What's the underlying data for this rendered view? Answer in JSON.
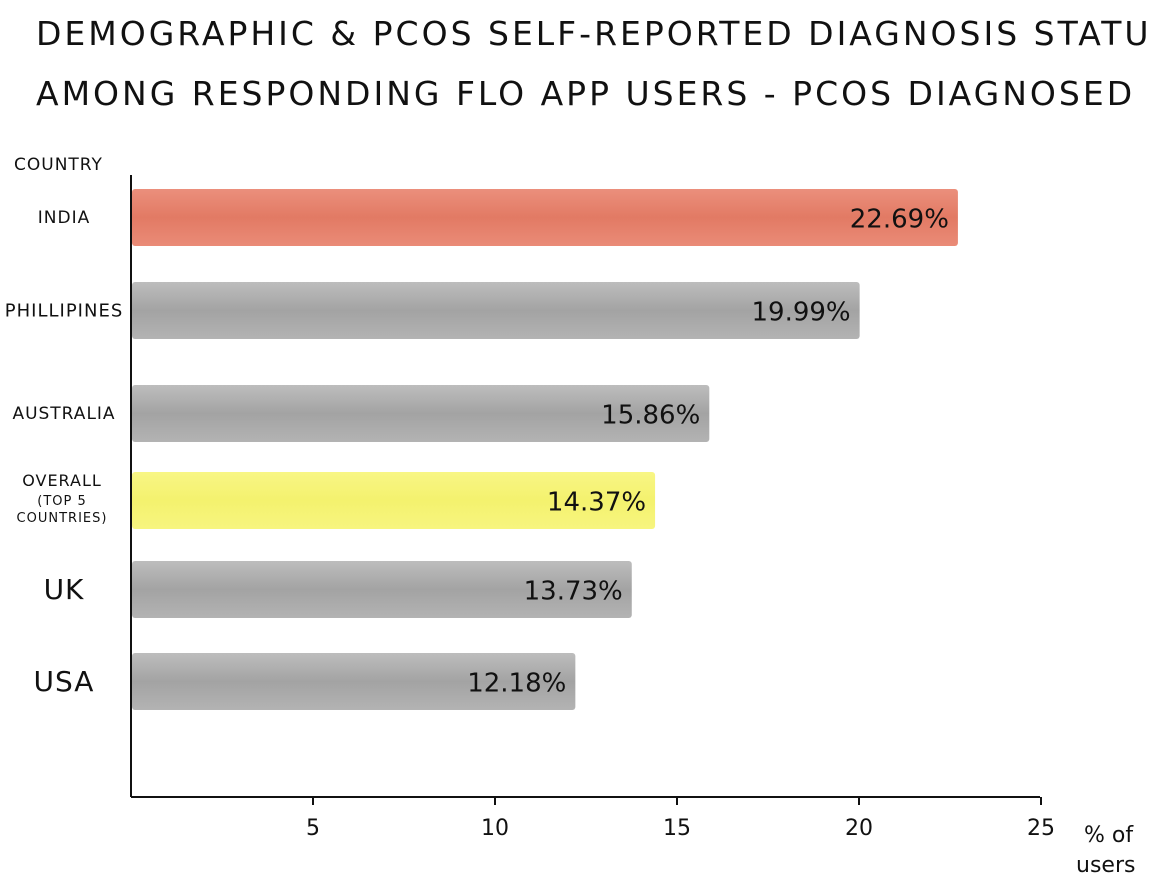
{
  "chart_data": {
    "type": "bar",
    "orientation": "horizontal",
    "title_lines": [
      "DEMOGRAPHIC & PCOS SELF-REPORTED DIAGNOSIS STATUS",
      "AMONG RESPONDING FLO APP USERS - PCOS DIAGNOSED"
    ],
    "ylabel": "COUNTRY",
    "xlabel": "% of users",
    "categories": [
      [
        "INDIA"
      ],
      [
        "PHILLIPINES"
      ],
      [
        "AUSTRALIA"
      ],
      [
        "OVERALL",
        "(TOP 5",
        "COUNTRIES)"
      ],
      [
        "UK"
      ],
      [
        "USA"
      ]
    ],
    "values": [
      22.69,
      19.99,
      15.86,
      14.37,
      13.73,
      12.18
    ],
    "value_labels": [
      "22.69%",
      "19.99%",
      "15.86%",
      "14.37%",
      "13.73%",
      "12.18%"
    ],
    "xlim": [
      0,
      25
    ],
    "xticks": [
      5,
      10,
      15,
      20,
      25
    ],
    "grid": false,
    "colors": {
      "default_bar": "#a6a6a6",
      "highlight_bar": "#e5806b",
      "overall_bar": "#f6f47a",
      "highlight_label": "#d33a2c"
    },
    "bar_colors": [
      "highlight_bar",
      "default_bar",
      "default_bar",
      "overall_bar",
      "default_bar",
      "default_bar"
    ],
    "label_colors": [
      "highlight_label",
      null,
      null,
      null,
      null,
      null
    ]
  }
}
